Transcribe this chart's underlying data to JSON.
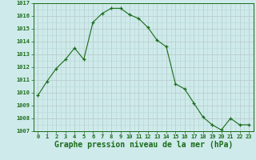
{
  "x": [
    0,
    1,
    2,
    3,
    4,
    5,
    6,
    7,
    8,
    9,
    10,
    11,
    12,
    13,
    14,
    15,
    16,
    17,
    18,
    19,
    20,
    21,
    22,
    23
  ],
  "y": [
    1009.8,
    1010.9,
    1011.9,
    1012.6,
    1013.5,
    1012.6,
    1015.5,
    1016.2,
    1016.6,
    1016.6,
    1016.1,
    1015.8,
    1015.1,
    1014.1,
    1013.6,
    1010.7,
    1010.3,
    1009.2,
    1008.1,
    1007.5,
    1007.1,
    1008.0,
    1007.5,
    1007.5
  ],
  "ylim": [
    1007,
    1017
  ],
  "xlim": [
    -0.5,
    23.5
  ],
  "yticks": [
    1007,
    1008,
    1009,
    1010,
    1011,
    1012,
    1013,
    1014,
    1015,
    1016,
    1017
  ],
  "xticks": [
    0,
    1,
    2,
    3,
    4,
    5,
    6,
    7,
    8,
    9,
    10,
    11,
    12,
    13,
    14,
    15,
    16,
    17,
    18,
    19,
    20,
    21,
    22,
    23
  ],
  "line_color": "#1a6b1a",
  "marker_color": "#1a6b1a",
  "bg_color": "#ceeaea",
  "xlabel": "Graphe pression niveau de la mer (hPa)",
  "xlabel_color": "#1a6b1a",
  "tick_color": "#1a6b1a",
  "tick_fontsize": 5.0,
  "xlabel_fontsize": 7.0,
  "grid_major_color": "#b8c8c8",
  "grid_minor_color": "#b8d8d8"
}
